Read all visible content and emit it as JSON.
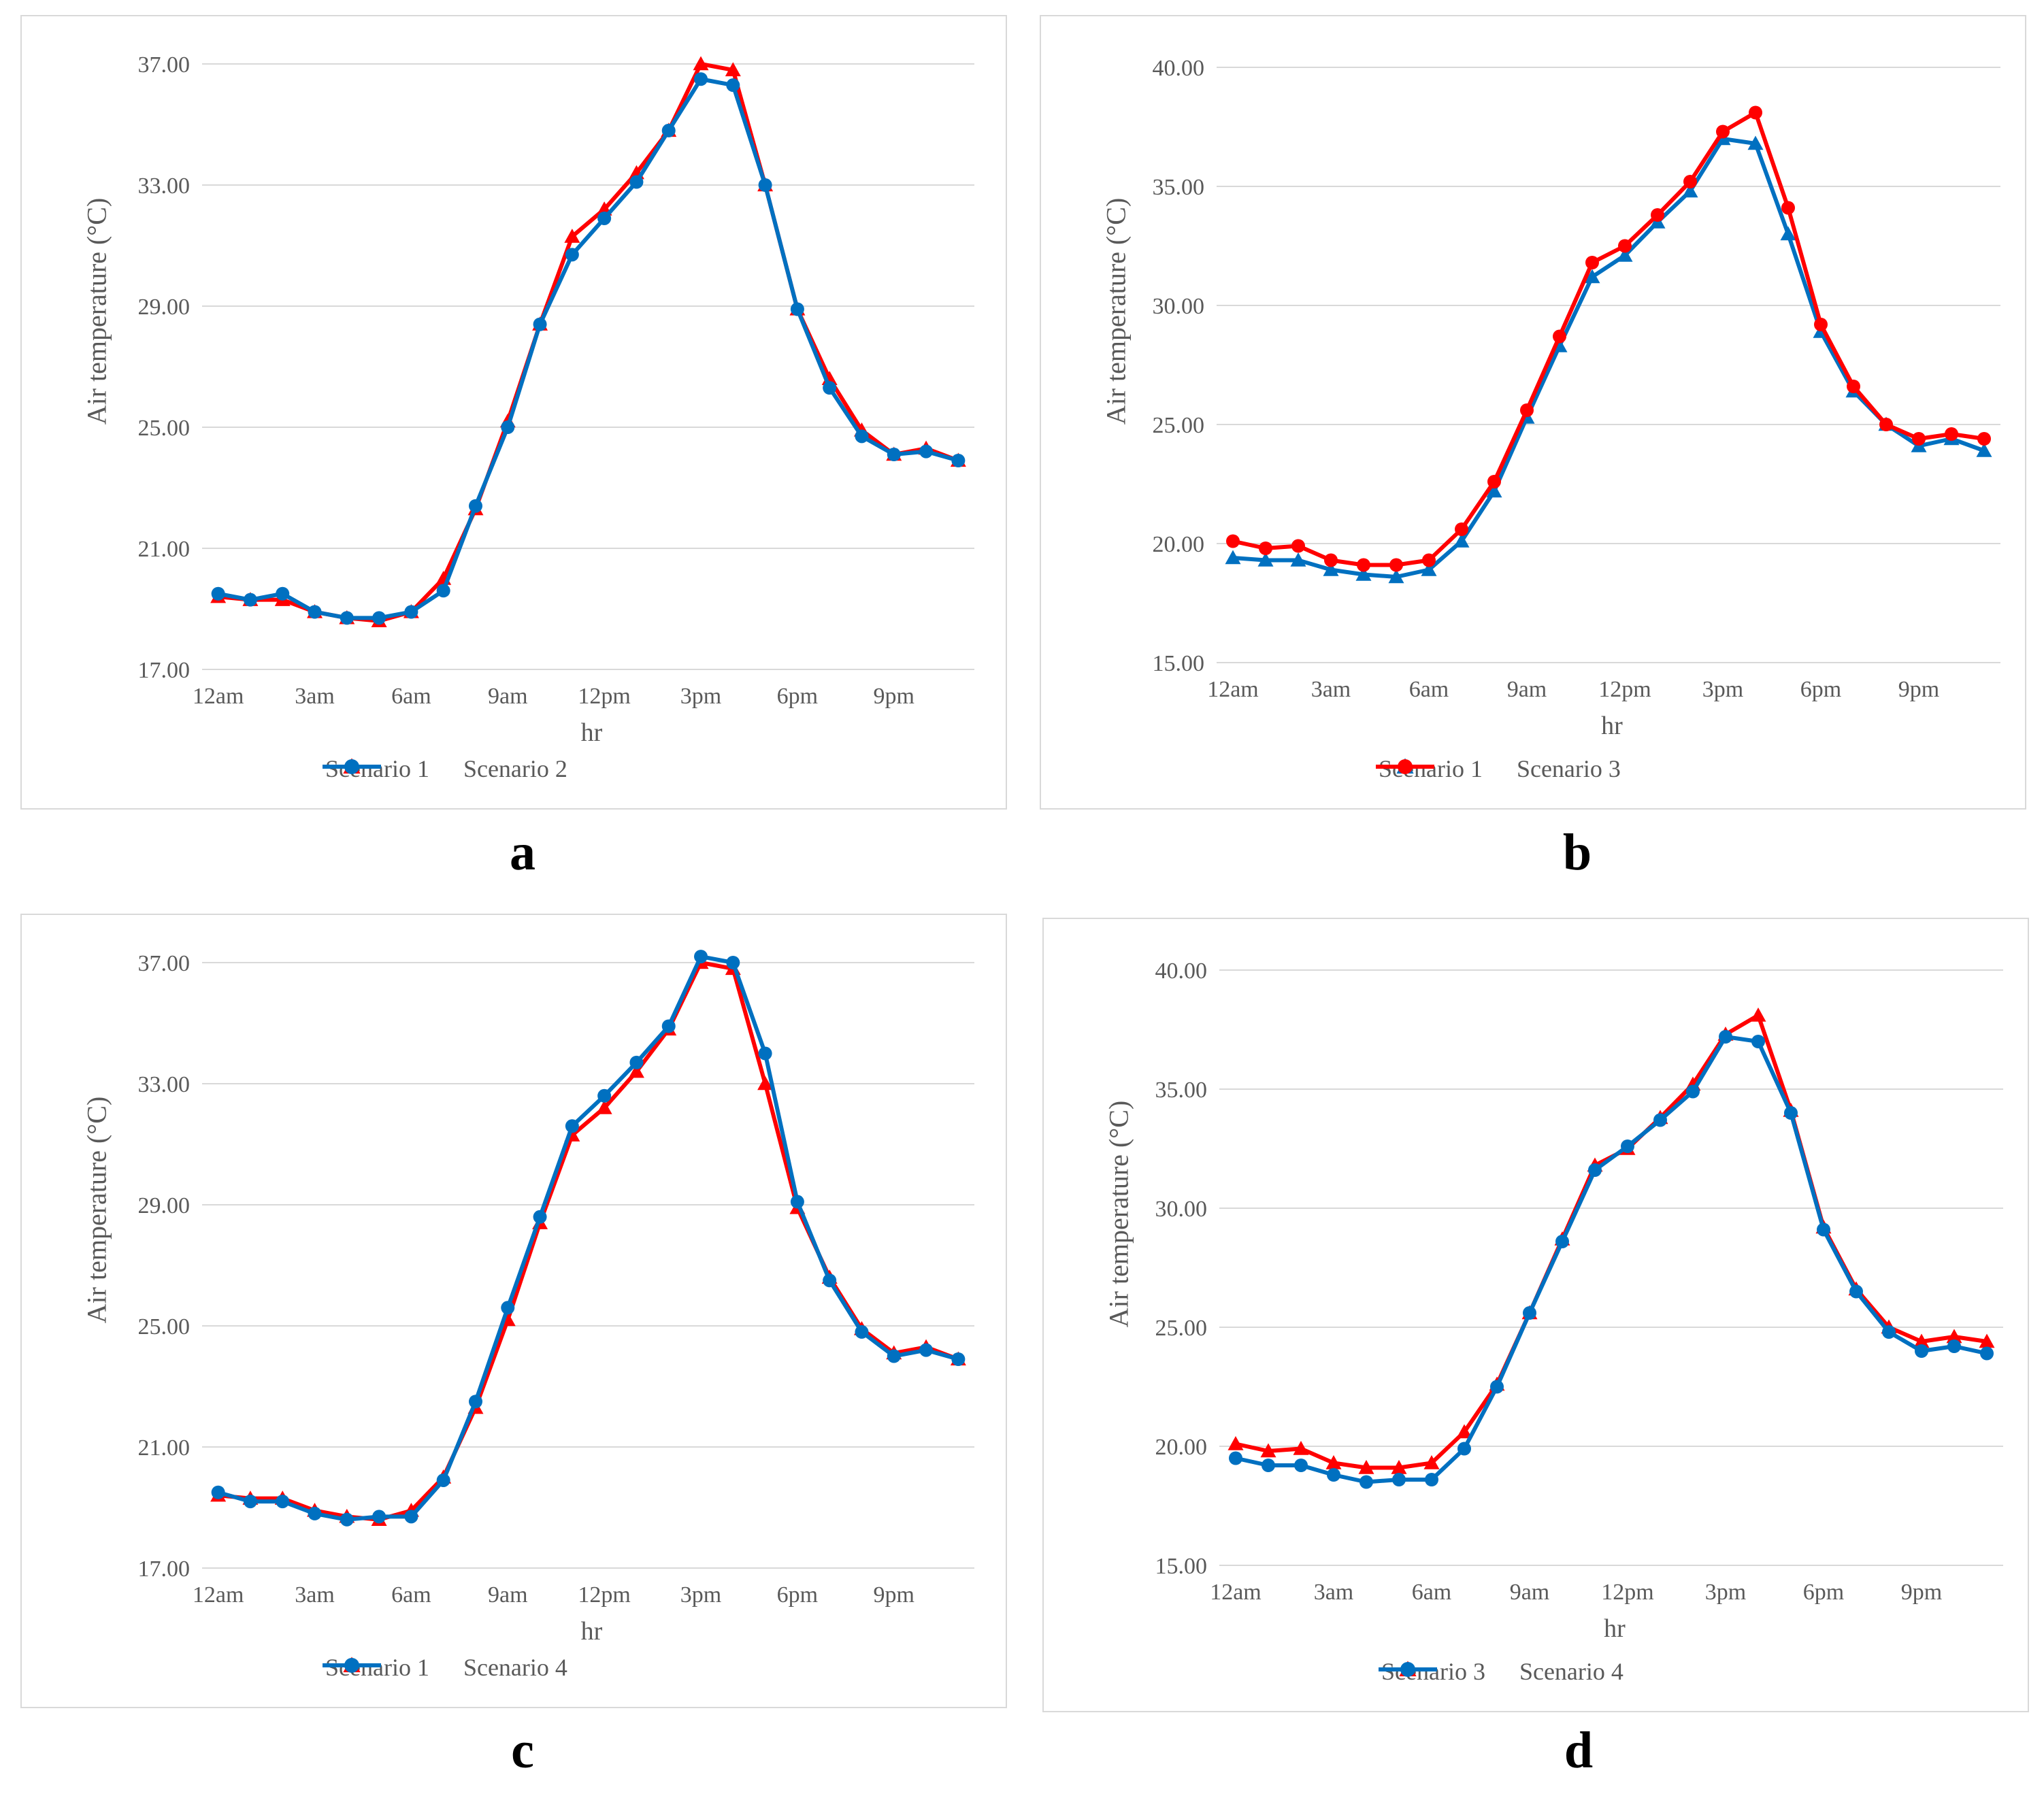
{
  "charts": [
    {
      "id": "a",
      "caption": "a",
      "title": "",
      "xlabel": "hr",
      "ylabel": "Air temperature (°C)",
      "colors": {
        "axis_text": "#595959"
      }
    },
    {
      "id": "b",
      "caption": "b",
      "title": "",
      "xlabel": "hr",
      "ylabel": "Air temperature (°C)",
      "colors": {
        "axis_text": "#595959"
      }
    },
    {
      "id": "c",
      "caption": "c",
      "title": "",
      "xlabel": "hr",
      "ylabel": "Air temperature (°C)",
      "colors": {
        "axis_text": "#595959"
      }
    },
    {
      "id": "d",
      "caption": "d",
      "title": "",
      "xlabel": "hr",
      "ylabel": "Air temperature (°C)",
      "colors": {
        "axis_text": "#595959"
      }
    }
  ],
  "chart_data": [
    {
      "type": "line",
      "title": "",
      "xlabel": "hr",
      "ylabel": "Air temperature (°C)",
      "x": [
        0,
        1,
        2,
        3,
        4,
        5,
        6,
        7,
        8,
        9,
        10,
        11,
        12,
        13,
        14,
        15,
        16,
        17,
        18,
        19,
        20,
        21,
        22,
        23
      ],
      "x_tick_labels": [
        "12am",
        "3am",
        "6am",
        "9am",
        "12pm",
        "3pm",
        "6pm",
        "9pm"
      ],
      "y_ticks": [
        "17.00",
        "21.00",
        "25.00",
        "29.00",
        "33.00",
        "37.00"
      ],
      "ylim": [
        17,
        37
      ],
      "grid": true,
      "legend": "bottom-center",
      "series": [
        {
          "name": "Scenario 1",
          "marker": "triangle",
          "color": "#ff0000",
          "values": [
            19.4,
            19.3,
            19.3,
            18.9,
            18.7,
            18.6,
            18.9,
            20.0,
            22.3,
            25.2,
            28.4,
            31.3,
            32.2,
            33.4,
            34.8,
            37.0,
            36.8,
            33.0,
            28.9,
            26.6,
            24.9,
            24.1,
            24.3,
            23.9
          ]
        },
        {
          "name": "Scenario 2",
          "marker": "circle",
          "color": "#0070c0",
          "values": [
            19.5,
            19.3,
            19.5,
            18.9,
            18.7,
            18.7,
            18.9,
            19.6,
            22.4,
            25.0,
            28.4,
            30.7,
            31.9,
            33.1,
            34.8,
            36.5,
            36.3,
            33.0,
            28.9,
            26.3,
            24.7,
            24.1,
            24.2,
            23.9
          ]
        }
      ]
    },
    {
      "type": "line",
      "title": "",
      "xlabel": "hr",
      "ylabel": "Air temperature (°C)",
      "x": [
        0,
        1,
        2,
        3,
        4,
        5,
        6,
        7,
        8,
        9,
        10,
        11,
        12,
        13,
        14,
        15,
        16,
        17,
        18,
        19,
        20,
        21,
        22,
        23
      ],
      "x_tick_labels": [
        "12am",
        "3am",
        "6am",
        "9am",
        "12pm",
        "3pm",
        "6pm",
        "9pm"
      ],
      "y_ticks": [
        "15.00",
        "20.00",
        "25.00",
        "30.00",
        "35.00",
        "40.00"
      ],
      "ylim": [
        15,
        40
      ],
      "grid": true,
      "legend": "bottom-center",
      "series": [
        {
          "name": "Scenario 1",
          "marker": "triangle",
          "color": "#0070c0",
          "values": [
            19.4,
            19.3,
            19.3,
            18.9,
            18.7,
            18.6,
            18.9,
            20.1,
            22.2,
            25.3,
            28.3,
            31.2,
            32.1,
            33.5,
            34.8,
            37.0,
            36.8,
            33.0,
            28.9,
            26.4,
            25.0,
            24.1,
            24.4,
            23.9
          ]
        },
        {
          "name": "Scenario 3",
          "marker": "circle",
          "color": "#ff0000",
          "values": [
            20.1,
            19.8,
            19.9,
            19.3,
            19.1,
            19.1,
            19.3,
            20.6,
            22.6,
            25.6,
            28.7,
            31.8,
            32.5,
            33.8,
            35.2,
            37.3,
            38.1,
            34.1,
            29.2,
            26.6,
            25.0,
            24.4,
            24.6,
            24.4
          ]
        }
      ]
    },
    {
      "type": "line",
      "title": "",
      "xlabel": "hr",
      "ylabel": "Air temperature (°C)",
      "x": [
        0,
        1,
        2,
        3,
        4,
        5,
        6,
        7,
        8,
        9,
        10,
        11,
        12,
        13,
        14,
        15,
        16,
        17,
        18,
        19,
        20,
        21,
        22,
        23
      ],
      "x_tick_labels": [
        "12am",
        "3am",
        "6am",
        "9am",
        "12pm",
        "3pm",
        "6pm",
        "9pm"
      ],
      "y_ticks": [
        "17.00",
        "21.00",
        "25.00",
        "29.00",
        "33.00",
        "37.00"
      ],
      "ylim": [
        17,
        37
      ],
      "grid": true,
      "legend": "bottom-center",
      "series": [
        {
          "name": "Scenario 1",
          "marker": "triangle",
          "color": "#ff0000",
          "values": [
            19.4,
            19.3,
            19.3,
            18.9,
            18.7,
            18.6,
            18.9,
            20.0,
            22.3,
            25.2,
            28.4,
            31.3,
            32.2,
            33.4,
            34.8,
            37.0,
            36.8,
            33.0,
            28.9,
            26.6,
            24.9,
            24.1,
            24.3,
            23.9
          ]
        },
        {
          "name": "Scenario 4",
          "marker": "circle",
          "color": "#0070c0",
          "values": [
            19.5,
            19.2,
            19.2,
            18.8,
            18.6,
            18.7,
            18.7,
            19.9,
            22.5,
            25.6,
            28.6,
            31.6,
            32.6,
            33.7,
            34.9,
            37.2,
            37.0,
            34.0,
            29.1,
            26.5,
            24.8,
            24.0,
            24.2,
            23.9
          ]
        }
      ]
    },
    {
      "type": "line",
      "title": "",
      "xlabel": "hr",
      "ylabel": "Air temperature (°C)",
      "x": [
        0,
        1,
        2,
        3,
        4,
        5,
        6,
        7,
        8,
        9,
        10,
        11,
        12,
        13,
        14,
        15,
        16,
        17,
        18,
        19,
        20,
        21,
        22,
        23
      ],
      "x_tick_labels": [
        "12am",
        "3am",
        "6am",
        "9am",
        "12pm",
        "3pm",
        "6pm",
        "9pm"
      ],
      "y_ticks": [
        "15.00",
        "20.00",
        "25.00",
        "30.00",
        "35.00",
        "40.00"
      ],
      "ylim": [
        15,
        40
      ],
      "grid": true,
      "legend": "bottom-center",
      "series": [
        {
          "name": "Scenario 3",
          "marker": "triangle",
          "color": "#ff0000",
          "values": [
            20.1,
            19.8,
            19.9,
            19.3,
            19.1,
            19.1,
            19.3,
            20.6,
            22.6,
            25.6,
            28.7,
            31.8,
            32.5,
            33.8,
            35.2,
            37.3,
            38.1,
            34.1,
            29.2,
            26.6,
            25.0,
            24.4,
            24.6,
            24.4
          ]
        },
        {
          "name": "Scenario 4",
          "marker": "circle",
          "color": "#0070c0",
          "values": [
            19.5,
            19.2,
            19.2,
            18.8,
            18.5,
            18.6,
            18.6,
            19.9,
            22.5,
            25.6,
            28.6,
            31.6,
            32.6,
            33.7,
            34.9,
            37.2,
            37.0,
            34.0,
            29.1,
            26.5,
            24.8,
            24.0,
            24.2,
            23.9
          ]
        }
      ]
    }
  ]
}
